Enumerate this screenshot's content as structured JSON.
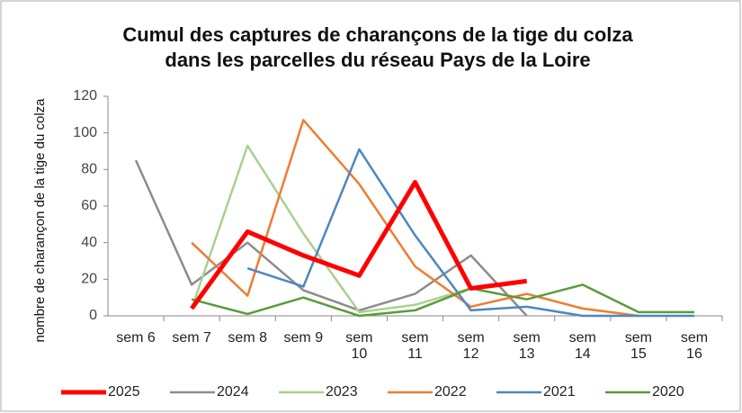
{
  "chart_data": {
    "type": "line",
    "title": [
      "Cumul des captures de charançons de la tige du colza",
      "dans les parcelles du réseau Pays de la Loire"
    ],
    "y_label": "nombre de charançon de la tige du colza",
    "categories": [
      "sem 6",
      "sem 7",
      "sem 8",
      "sem 9",
      "sem 10",
      "sem 11",
      "sem 12",
      "sem 13",
      "sem 14",
      "sem 15",
      "sem 16"
    ],
    "ylim": [
      0,
      120
    ],
    "yticks": [
      0,
      20,
      40,
      60,
      80,
      100,
      120
    ],
    "grid": false,
    "legend": "bottom",
    "series": [
      {
        "name": "2025",
        "color": "#ff0000",
        "values": [
          null,
          4,
          46,
          33,
          22,
          73,
          15,
          19,
          null,
          null,
          null
        ]
      },
      {
        "name": "2024",
        "color": "#8c8c8c",
        "values": [
          85,
          17,
          40,
          14,
          3,
          12,
          33,
          0,
          null,
          null,
          null
        ]
      },
      {
        "name": "2023",
        "color": "#a9d18e",
        "values": [
          null,
          4,
          93,
          45,
          2,
          6,
          15,
          null,
          null,
          null,
          null
        ]
      },
      {
        "name": "2022",
        "color": "#ed7d31",
        "values": [
          null,
          40,
          11,
          107,
          72,
          27,
          5,
          12,
          4,
          0,
          null
        ]
      },
      {
        "name": "2021",
        "color": "#4f86c0",
        "values": [
          null,
          null,
          26,
          16,
          91,
          44,
          3,
          5,
          0,
          0,
          0
        ]
      },
      {
        "name": "2020",
        "color": "#5b9a3c",
        "values": [
          null,
          9,
          1,
          10,
          0,
          3,
          15,
          9,
          17,
          2,
          2
        ]
      }
    ]
  }
}
